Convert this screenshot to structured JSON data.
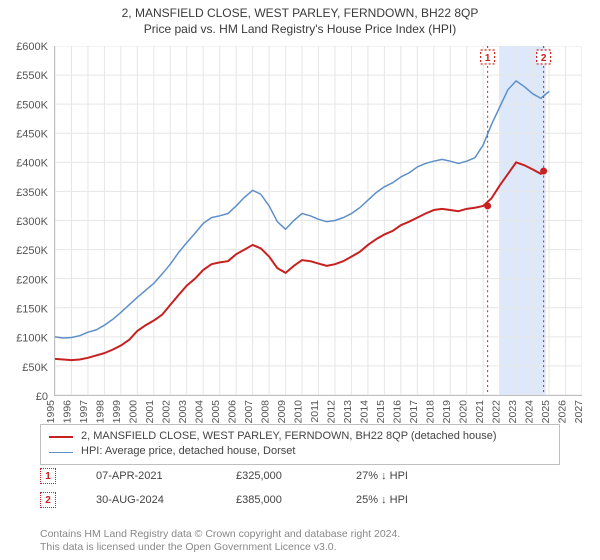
{
  "titles": {
    "line1": "2, MANSFIELD CLOSE, WEST PARLEY, FERNDOWN, BH22 8QP",
    "line2": "Price paid vs. HM Land Registry's House Price Index (HPI)"
  },
  "chart": {
    "type": "line",
    "background_color": "#ffffff",
    "grid_color": "#e6e6e6",
    "axis_color": "#bfbfbf",
    "x_years": [
      1995,
      1996,
      1997,
      1998,
      1999,
      2000,
      2001,
      2002,
      2003,
      2004,
      2005,
      2006,
      2007,
      2008,
      2009,
      2010,
      2011,
      2012,
      2013,
      2014,
      2015,
      2016,
      2017,
      2018,
      2019,
      2020,
      2021,
      2022,
      2023,
      2024,
      2025,
      2026,
      2027
    ],
    "xlim": [
      1995,
      2027
    ],
    "ylim": [
      0,
      600000
    ],
    "ytick_step": 50000,
    "ytick_labels": [
      "£0",
      "£50K",
      "£100K",
      "£150K",
      "£200K",
      "£250K",
      "£300K",
      "£350K",
      "£400K",
      "£450K",
      "£500K",
      "£550K",
      "£600K"
    ],
    "series": {
      "price_paid": {
        "color": "#c82020",
        "width": 2,
        "label": "2, MANSFIELD CLOSE, WEST PARLEY, FERNDOWN, BH22 8QP (detached house)",
        "points": [
          [
            1995,
            62000
          ],
          [
            1995.5,
            61000
          ],
          [
            1996,
            60000
          ],
          [
            1996.5,
            61000
          ],
          [
            1997,
            64000
          ],
          [
            1997.5,
            68000
          ],
          [
            1998,
            72000
          ],
          [
            1998.5,
            78000
          ],
          [
            1999,
            85000
          ],
          [
            1999.5,
            95000
          ],
          [
            2000,
            110000
          ],
          [
            2000.5,
            120000
          ],
          [
            2001,
            128000
          ],
          [
            2001.5,
            138000
          ],
          [
            2002,
            155000
          ],
          [
            2002.5,
            172000
          ],
          [
            2003,
            188000
          ],
          [
            2003.5,
            200000
          ],
          [
            2004,
            215000
          ],
          [
            2004.5,
            225000
          ],
          [
            2005,
            228000
          ],
          [
            2005.5,
            230000
          ],
          [
            2006,
            242000
          ],
          [
            2006.5,
            250000
          ],
          [
            2007,
            258000
          ],
          [
            2007.5,
            252000
          ],
          [
            2008,
            238000
          ],
          [
            2008.5,
            218000
          ],
          [
            2009,
            210000
          ],
          [
            2009.5,
            222000
          ],
          [
            2010,
            232000
          ],
          [
            2010.5,
            230000
          ],
          [
            2011,
            226000
          ],
          [
            2011.5,
            222000
          ],
          [
            2012,
            225000
          ],
          [
            2012.5,
            230000
          ],
          [
            2013,
            238000
          ],
          [
            2013.5,
            246000
          ],
          [
            2014,
            258000
          ],
          [
            2014.5,
            268000
          ],
          [
            2015,
            276000
          ],
          [
            2015.5,
            282000
          ],
          [
            2016,
            292000
          ],
          [
            2016.5,
            298000
          ],
          [
            2017,
            305000
          ],
          [
            2017.5,
            312000
          ],
          [
            2018,
            318000
          ],
          [
            2018.5,
            320000
          ],
          [
            2019,
            318000
          ],
          [
            2019.5,
            316000
          ],
          [
            2020,
            320000
          ],
          [
            2020.5,
            322000
          ],
          [
            2021,
            325000
          ],
          [
            2021.5,
            338000
          ],
          [
            2022,
            360000
          ],
          [
            2022.5,
            380000
          ],
          [
            2023,
            400000
          ],
          [
            2023.5,
            395000
          ],
          [
            2024,
            388000
          ],
          [
            2024.5,
            380000
          ],
          [
            2024.67,
            385000
          ]
        ]
      },
      "hpi": {
        "color": "#5d8fc9",
        "width": 1.5,
        "label": "HPI: Average price, detached house, Dorset",
        "points": [
          [
            1995,
            100000
          ],
          [
            1995.5,
            98000
          ],
          [
            1996,
            99000
          ],
          [
            1996.5,
            102000
          ],
          [
            1997,
            108000
          ],
          [
            1997.5,
            112000
          ],
          [
            1998,
            120000
          ],
          [
            1998.5,
            130000
          ],
          [
            1999,
            142000
          ],
          [
            1999.5,
            155000
          ],
          [
            2000,
            168000
          ],
          [
            2000.5,
            180000
          ],
          [
            2001,
            192000
          ],
          [
            2001.5,
            208000
          ],
          [
            2002,
            225000
          ],
          [
            2002.5,
            245000
          ],
          [
            2003,
            262000
          ],
          [
            2003.5,
            278000
          ],
          [
            2004,
            295000
          ],
          [
            2004.5,
            305000
          ],
          [
            2005,
            308000
          ],
          [
            2005.5,
            312000
          ],
          [
            2006,
            325000
          ],
          [
            2006.5,
            340000
          ],
          [
            2007,
            352000
          ],
          [
            2007.5,
            345000
          ],
          [
            2008,
            325000
          ],
          [
            2008.5,
            298000
          ],
          [
            2009,
            285000
          ],
          [
            2009.5,
            300000
          ],
          [
            2010,
            312000
          ],
          [
            2010.5,
            308000
          ],
          [
            2011,
            302000
          ],
          [
            2011.5,
            298000
          ],
          [
            2012,
            300000
          ],
          [
            2012.5,
            305000
          ],
          [
            2013,
            312000
          ],
          [
            2013.5,
            322000
          ],
          [
            2014,
            335000
          ],
          [
            2014.5,
            348000
          ],
          [
            2015,
            358000
          ],
          [
            2015.5,
            365000
          ],
          [
            2016,
            375000
          ],
          [
            2016.5,
            382000
          ],
          [
            2017,
            392000
          ],
          [
            2017.5,
            398000
          ],
          [
            2018,
            402000
          ],
          [
            2018.5,
            405000
          ],
          [
            2019,
            402000
          ],
          [
            2019.5,
            398000
          ],
          [
            2020,
            402000
          ],
          [
            2020.5,
            408000
          ],
          [
            2021,
            430000
          ],
          [
            2021.5,
            465000
          ],
          [
            2022,
            495000
          ],
          [
            2022.5,
            525000
          ],
          [
            2023,
            540000
          ],
          [
            2023.5,
            530000
          ],
          [
            2024,
            518000
          ],
          [
            2024.5,
            510000
          ],
          [
            2025,
            522000
          ]
        ]
      }
    },
    "markers": [
      {
        "badge": "1",
        "x": 2021.27,
        "y": 325000,
        "date": "07-APR-2021",
        "price": "£325,000",
        "diff": "27% ↓ HPI",
        "band": {
          "x0": 2022.0,
          "x1": 2024.8,
          "fill": "#dde9fb"
        }
      },
      {
        "badge": "2",
        "x": 2024.67,
        "y": 385000,
        "date": "30-AUG-2024",
        "price": "£385,000",
        "diff": "25% ↓ HPI"
      }
    ],
    "marker_line_color": "#c82020",
    "marker_badge_border": "#c82020",
    "marker_point_fill": "#c82020"
  },
  "footer": {
    "line1": "Contains HM Land Registry data © Crown copyright and database right 2024.",
    "line2": "This data is licensed under the Open Government Licence v3.0."
  }
}
